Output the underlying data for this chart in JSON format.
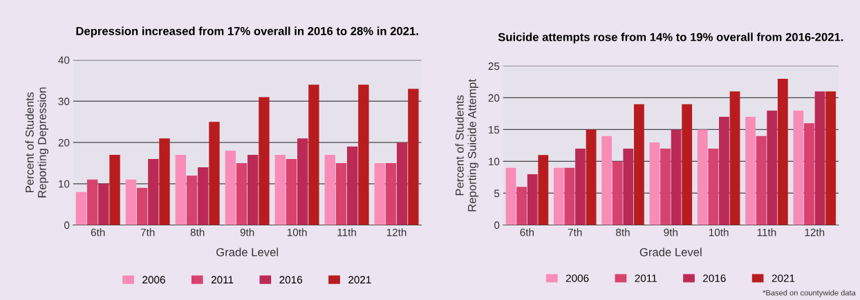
{
  "chart_data": [
    {
      "type": "bar",
      "title": "Depression increased from 17% overall in 2016 to 28% in 2021.",
      "xlabel": "Grade Level",
      "ylabel": "Percent of Students\nReporting Depression",
      "categories": [
        "6th",
        "7th",
        "8th",
        "9th",
        "10th",
        "11th",
        "12th"
      ],
      "series": [
        {
          "name": "2006",
          "color": "#f98cb6",
          "values": [
            8,
            11,
            17,
            18,
            17,
            17,
            15
          ]
        },
        {
          "name": "2011",
          "color": "#d8426f",
          "values": [
            11,
            9,
            12,
            15,
            16,
            15,
            15
          ]
        },
        {
          "name": "2016",
          "color": "#bb2a56",
          "values": [
            10,
            16,
            14,
            17,
            21,
            19,
            20
          ]
        },
        {
          "name": "2021",
          "color": "#b91c1f",
          "values": [
            17,
            21,
            25,
            31,
            34,
            34,
            33
          ]
        }
      ],
      "ylim": [
        0,
        40
      ],
      "yticks": [
        0,
        10,
        20,
        30,
        40
      ],
      "grid": "y",
      "legend": "bottom"
    },
    {
      "type": "bar",
      "title": "Suicide attempts rose from 14% to 19% overall from 2016-2021.",
      "xlabel": "Grade Level",
      "ylabel": "Percent of Students\nReporting Suicide Attempt",
      "categories": [
        "6th",
        "7th",
        "8th",
        "9th",
        "10th",
        "11th",
        "12th"
      ],
      "series": [
        {
          "name": "2006",
          "color": "#f98cb6",
          "values": [
            9,
            9,
            14,
            13,
            15,
            17,
            18
          ]
        },
        {
          "name": "2011",
          "color": "#d8426f",
          "values": [
            6,
            9,
            10,
            12,
            12,
            14,
            16
          ]
        },
        {
          "name": "2016",
          "color": "#bb2a56",
          "values": [
            8,
            12,
            12,
            15,
            17,
            18,
            21
          ]
        },
        {
          "name": "2021",
          "color": "#b91c1f",
          "values": [
            11,
            15,
            19,
            19,
            21,
            23,
            21
          ]
        }
      ],
      "ylim": [
        0,
        25
      ],
      "yticks": [
        0,
        5,
        10,
        15,
        20,
        25
      ],
      "grid": "y",
      "legend": "bottom",
      "annotations": [
        "*Based on countywide data"
      ]
    }
  ]
}
